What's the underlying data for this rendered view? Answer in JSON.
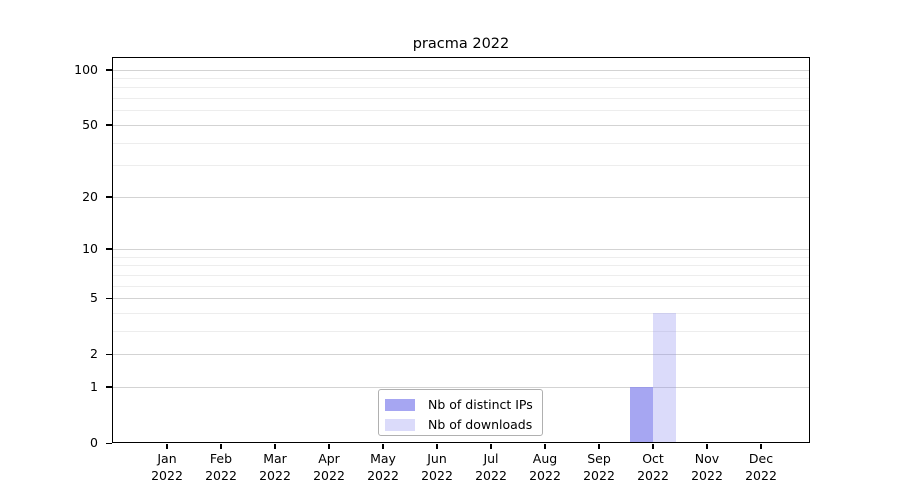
{
  "chart": {
    "colors": {
      "distinct_ips": "rgba(136,136,238,0.75)",
      "downloads": "rgba(136,136,238,0.30)",
      "grid_major": "#d3d3d3",
      "grid_minor": "#ededed",
      "spine": "#000000",
      "legend_border": "#b0b0b0"
    }
  },
  "chart_data": {
    "type": "bar",
    "title": "pracma 2022",
    "categories": [
      "Jan 2022",
      "Feb 2022",
      "Mar 2022",
      "Apr 2022",
      "May 2022",
      "Jun 2022",
      "Jul 2022",
      "Aug 2022",
      "Sep 2022",
      "Oct 2022",
      "Nov 2022",
      "Dec 2022"
    ],
    "series": [
      {
        "name": "Nb of distinct IPs",
        "values": [
          0,
          0,
          0,
          0,
          0,
          0,
          0,
          0,
          0,
          1,
          0,
          0
        ]
      },
      {
        "name": "Nb of downloads",
        "values": [
          0,
          0,
          0,
          0,
          0,
          0,
          0,
          0,
          0,
          4,
          0,
          0
        ]
      }
    ],
    "xlabel": "",
    "ylabel": "",
    "yscale": "log1p",
    "ylim": [
      0,
      117
    ],
    "yticks_major": [
      0,
      1,
      2,
      5,
      10,
      20,
      50,
      100
    ],
    "yticks_minor": [
      3,
      4,
      6,
      7,
      8,
      9,
      30,
      40,
      60,
      70,
      80,
      90
    ],
    "grid": "horizontal",
    "legend_position": "lower-center"
  }
}
